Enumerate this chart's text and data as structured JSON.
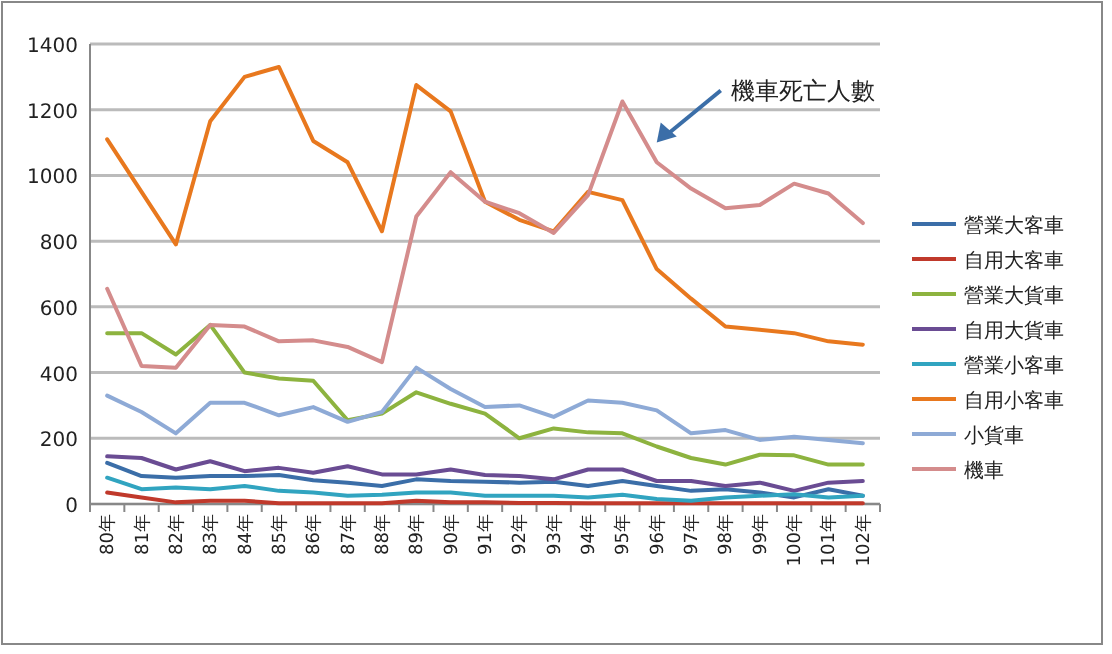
{
  "chart_data": {
    "type": "line",
    "categories": [
      "80年",
      "81年",
      "82年",
      "83年",
      "84年",
      "85年",
      "86年",
      "87年",
      "88年",
      "89年",
      "90年",
      "91年",
      "92年",
      "93年",
      "94年",
      "95年",
      "96年",
      "97年",
      "98年",
      "99年",
      "100年",
      "101年",
      "102年"
    ],
    "series": [
      {
        "name": "營業大客車",
        "color": "#3b6ea8",
        "values": [
          125,
          85,
          80,
          85,
          85,
          88,
          72,
          65,
          55,
          75,
          70,
          68,
          65,
          68,
          55,
          70,
          55,
          40,
          45,
          35,
          20,
          45,
          25
        ]
      },
      {
        "name": "自用大客車",
        "color": "#c0392b",
        "values": [
          35,
          20,
          5,
          10,
          10,
          2,
          2,
          2,
          2,
          10,
          5,
          5,
          3,
          3,
          2,
          2,
          2,
          2,
          2,
          2,
          2,
          2,
          2
        ]
      },
      {
        "name": "營業大貨車",
        "color": "#8db33f",
        "values": [
          520,
          520,
          455,
          545,
          400,
          382,
          375,
          255,
          275,
          340,
          305,
          275,
          200,
          230,
          218,
          215,
          175,
          140,
          120,
          150,
          148,
          120,
          120
        ]
      },
      {
        "name": "自用大貨車",
        "color": "#6a4c93",
        "values": [
          145,
          140,
          105,
          130,
          100,
          110,
          95,
          115,
          90,
          90,
          105,
          88,
          85,
          75,
          105,
          105,
          70,
          70,
          55,
          65,
          40,
          65,
          70
        ]
      },
      {
        "name": "營業小客車",
        "color": "#31a4c0",
        "values": [
          80,
          45,
          50,
          45,
          55,
          40,
          35,
          25,
          28,
          35,
          35,
          25,
          25,
          25,
          20,
          28,
          15,
          10,
          20,
          25,
          30,
          20,
          25
        ]
      },
      {
        "name": "自用小客車",
        "color": "#e8781e",
        "values": [
          1110,
          950,
          790,
          1165,
          1300,
          1330,
          1105,
          1040,
          830,
          1275,
          1195,
          920,
          865,
          830,
          950,
          925,
          715,
          625,
          540,
          530,
          520,
          495,
          485
        ]
      },
      {
        "name": "小貨車",
        "color": "#8eaad6",
        "values": [
          330,
          280,
          215,
          308,
          308,
          270,
          295,
          250,
          280,
          415,
          350,
          295,
          300,
          265,
          315,
          308,
          285,
          215,
          225,
          195,
          205,
          195,
          185
        ]
      },
      {
        "name": "機車",
        "color": "#d48c8c",
        "values": [
          655,
          420,
          415,
          545,
          540,
          495,
          498,
          478,
          432,
          875,
          1010,
          920,
          885,
          825,
          940,
          1225,
          1040,
          960,
          900,
          910,
          975,
          945,
          855
        ]
      }
    ],
    "ylim": [
      0,
      1400
    ],
    "yticks": [
      0,
      200,
      400,
      600,
      800,
      1000,
      1200,
      1400
    ],
    "grid": "y",
    "legend": "right",
    "annotations": [
      {
        "text": "機車死亡人數",
        "x": "96年",
        "y": 1100
      }
    ]
  }
}
